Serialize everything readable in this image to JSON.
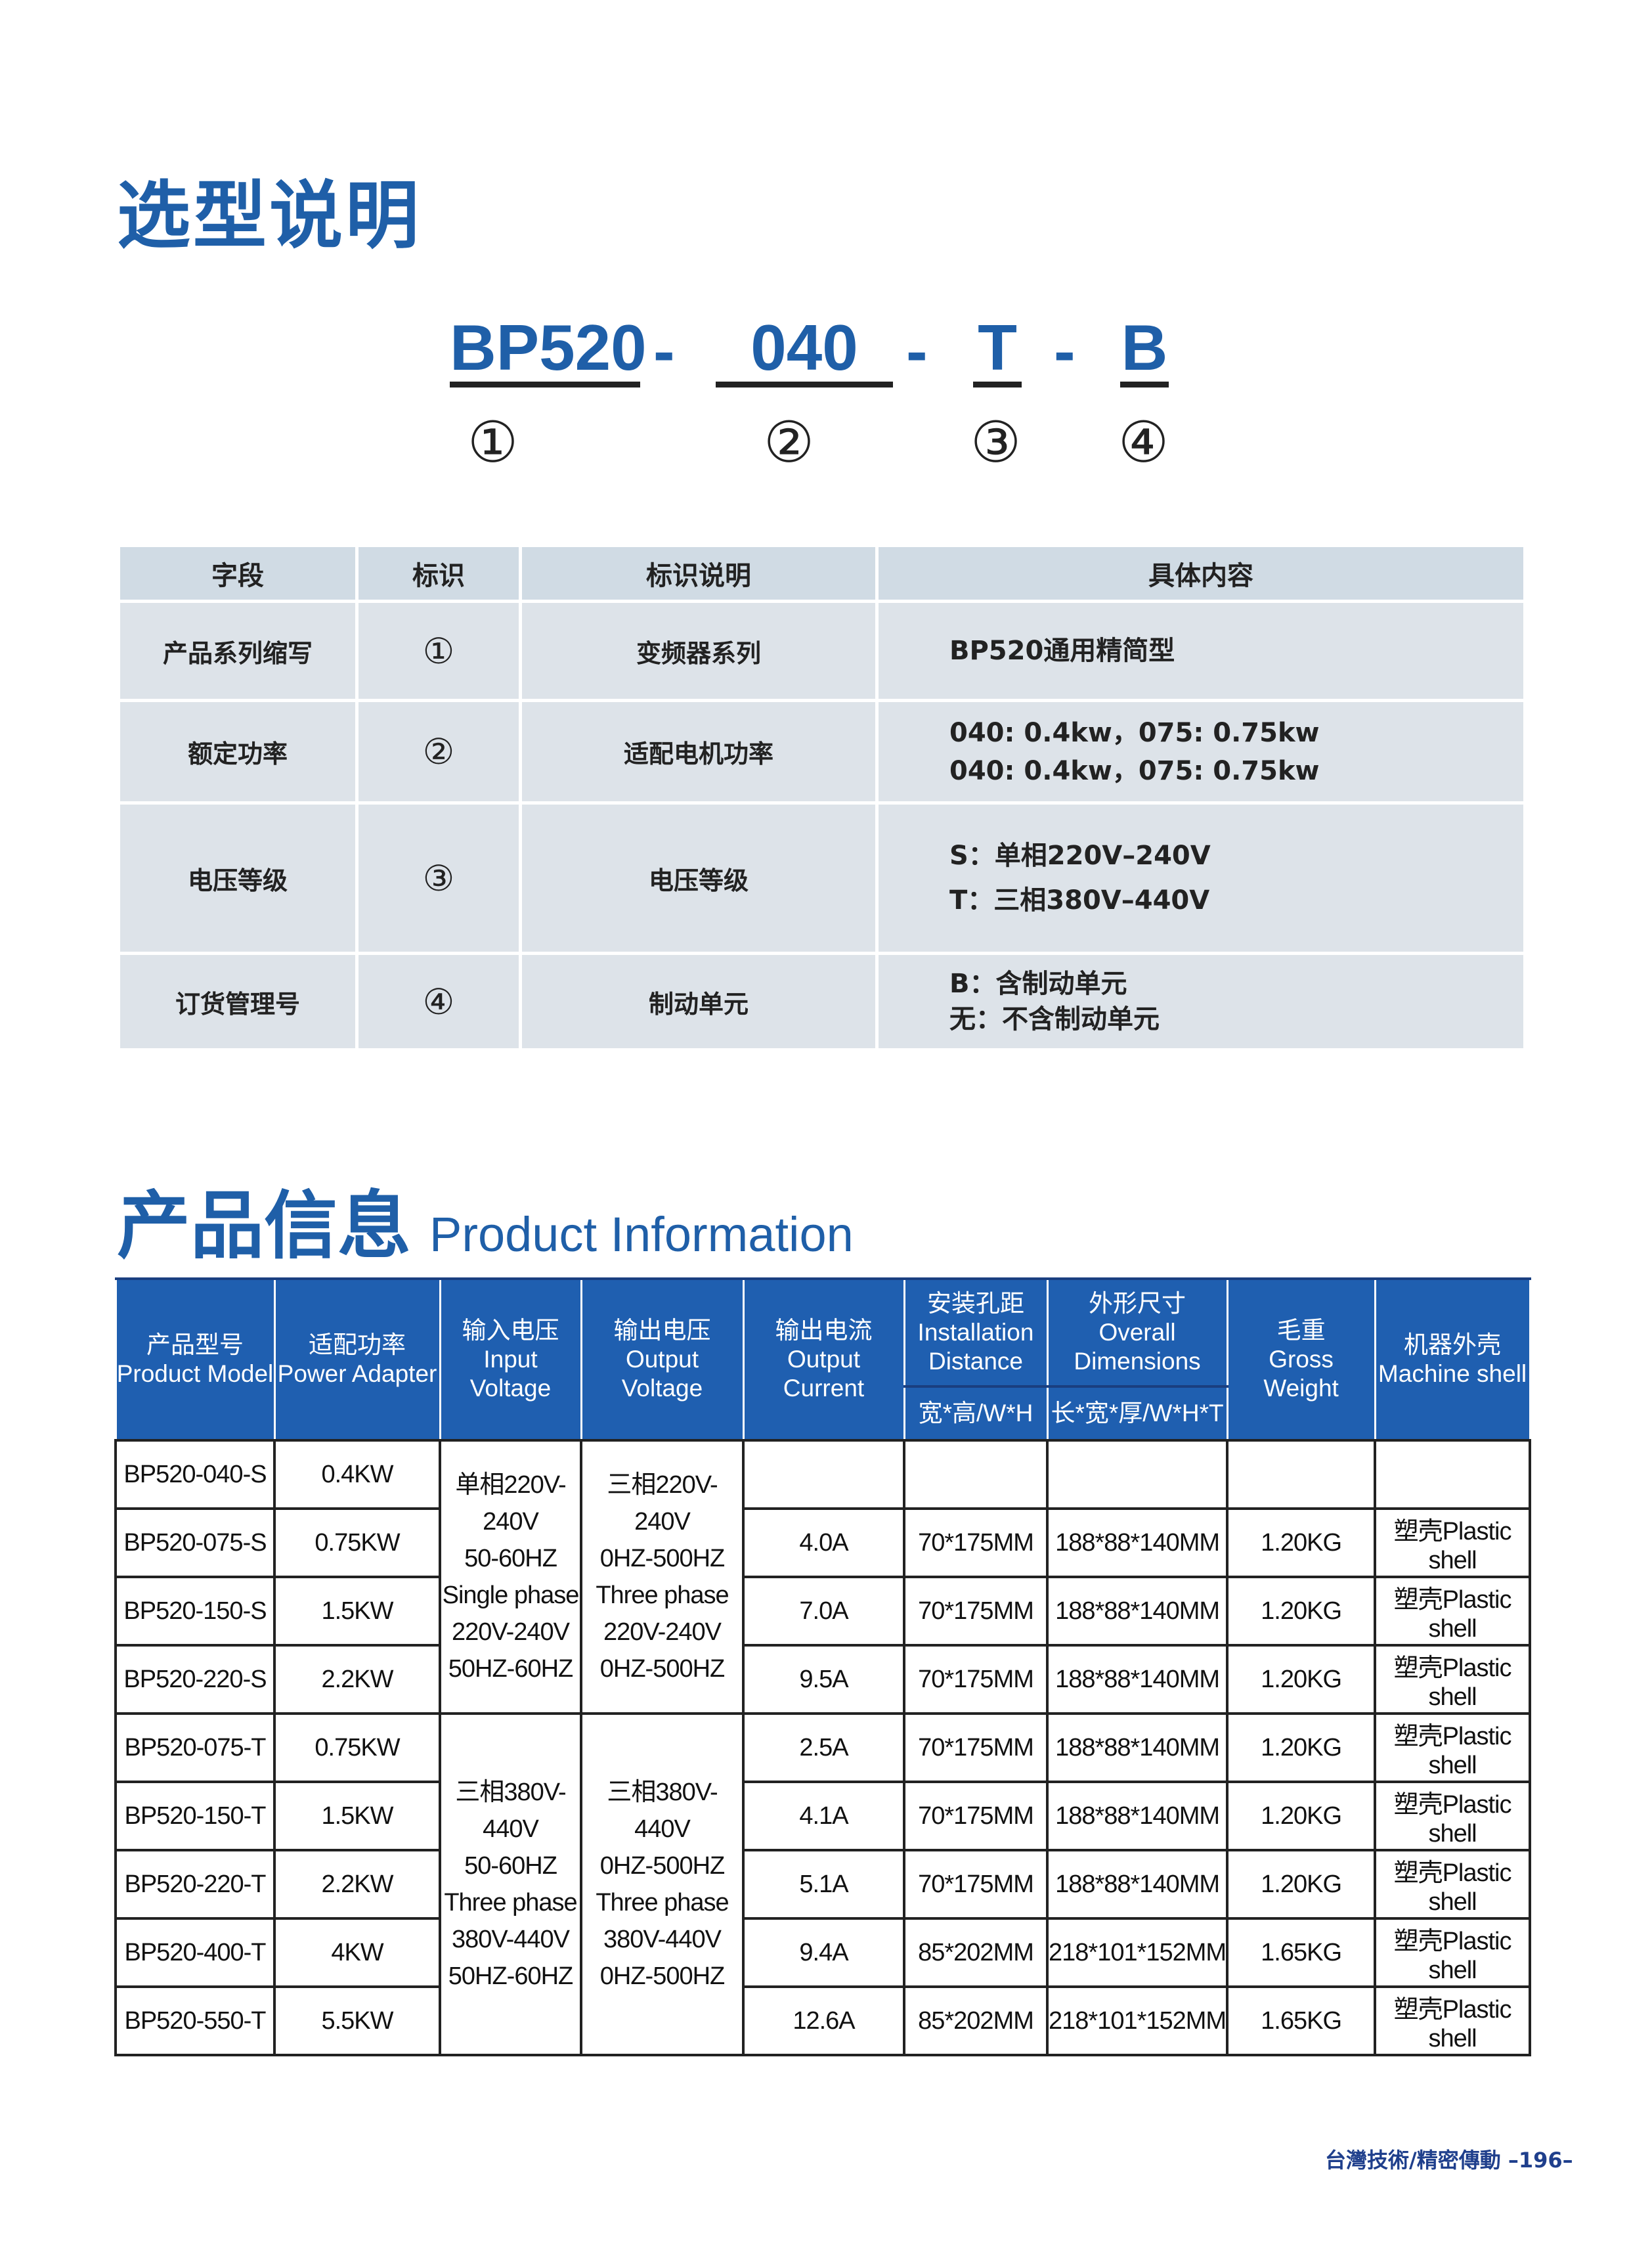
{
  "selection": {
    "title": "选型说明",
    "code_parts": [
      "BP520",
      "040",
      "T",
      "B"
    ],
    "separators": [
      "-",
      "-",
      "-"
    ],
    "markers": [
      "①",
      "②",
      "③",
      "④"
    ],
    "table": {
      "headers": [
        "字段",
        "标识",
        "标识说明",
        "具体内容"
      ],
      "rows": [
        {
          "field": "产品系列缩写",
          "marker": "①",
          "desc": "变频器系列",
          "content": [
            "BP520通用精简型"
          ]
        },
        {
          "field": "额定功率",
          "marker": "②",
          "desc": "适配电机功率",
          "content": [
            "040: 0.4kw，075: 0.75kw",
            "040: 0.4kw，075: 0.75kw"
          ]
        },
        {
          "field": "电压等级",
          "marker": "③",
          "desc": "电压等级",
          "content": [
            "S：单相220V–240V",
            "T：三相380V–440V"
          ]
        },
        {
          "field": "订货管理号",
          "marker": "④",
          "desc": "制动单元",
          "content": [
            "B：含制动单元",
            "无：不含制动单元"
          ]
        }
      ]
    }
  },
  "product": {
    "title_cn": "产品信息",
    "title_en": "Product Information",
    "headers": [
      {
        "cn": "产品型号",
        "en": "Product Model"
      },
      {
        "cn": "适配功率",
        "en": "Power Adapter"
      },
      {
        "cn": "输入电压",
        "en": "Input Voltage"
      },
      {
        "cn": "输出电压",
        "en": "Output Voltage"
      },
      {
        "cn": "输出电流",
        "en": "Output Current"
      },
      {
        "cn": "安装孔距",
        "en": "Installation Distance",
        "sub": "宽*高/W*H"
      },
      {
        "cn": "外形尺寸",
        "en": "Overall Dimensions",
        "sub": "长*宽*厚/W*H*T"
      },
      {
        "cn": "毛重",
        "en": "Gross Weight"
      },
      {
        "cn": "机器外壳",
        "en": "Machine shell"
      }
    ],
    "voltage_groups": [
      {
        "input": [
          "单相220V-",
          "240V",
          "50-60HZ",
          "Single phase",
          "220V-240V",
          "50HZ-60HZ"
        ],
        "output": [
          "三相220V-",
          "240V",
          "0HZ-500HZ",
          "Three phase",
          "220V-240V",
          "0HZ-500HZ"
        ]
      },
      {
        "input": [
          "三相380V-",
          "440V",
          "50-60HZ",
          "Three phase",
          "380V-440V",
          "50HZ-60HZ"
        ],
        "output": [
          "三相380V-",
          "440V",
          "0HZ-500HZ",
          "Three phase",
          "380V-440V",
          "0HZ-500HZ"
        ]
      }
    ],
    "rows": [
      {
        "model": "BP520-040-S",
        "power": "0.4KW",
        "current": "",
        "install": "",
        "dims": "",
        "weight": "",
        "shell": ""
      },
      {
        "model": "BP520-075-S",
        "power": "0.75KW",
        "current": "4.0A",
        "install": "70*175MM",
        "dims": "188*88*140MM",
        "weight": "1.20KG",
        "shell": "塑壳Plastic shell"
      },
      {
        "model": "BP520-150-S",
        "power": "1.5KW",
        "current": "7.0A",
        "install": "70*175MM",
        "dims": "188*88*140MM",
        "weight": "1.20KG",
        "shell": "塑壳Plastic shell"
      },
      {
        "model": "BP520-220-S",
        "power": "2.2KW",
        "current": "9.5A",
        "install": "70*175MM",
        "dims": "188*88*140MM",
        "weight": "1.20KG",
        "shell": "塑壳Plastic shell"
      },
      {
        "model": "BP520-075-T",
        "power": "0.75KW",
        "current": "2.5A",
        "install": "70*175MM",
        "dims": "188*88*140MM",
        "weight": "1.20KG",
        "shell": "塑壳Plastic shell"
      },
      {
        "model": "BP520-150-T",
        "power": "1.5KW",
        "current": "4.1A",
        "install": "70*175MM",
        "dims": "188*88*140MM",
        "weight": "1.20KG",
        "shell": "塑壳Plastic shell"
      },
      {
        "model": "BP520-220-T",
        "power": "2.2KW",
        "current": "5.1A",
        "install": "70*175MM",
        "dims": "188*88*140MM",
        "weight": "1.20KG",
        "shell": "塑壳Plastic shell"
      },
      {
        "model": "BP520-400-T",
        "power": "4KW",
        "current": "9.4A",
        "install": "85*202MM",
        "dims": "218*101*152MM",
        "weight": "1.65KG",
        "shell": "塑壳Plastic shell"
      },
      {
        "model": "BP520-550-T",
        "power": "5.5KW",
        "current": "12.6A",
        "install": "85*202MM",
        "dims": "218*101*152MM",
        "weight": "1.65KG",
        "shell": "塑壳Plastic shell"
      }
    ]
  },
  "footer": {
    "text": "台灣技術/精密傳動",
    "page": "–196–"
  },
  "colors": {
    "brand_blue": "#1f5fa8",
    "header_blue": "#1f5fb0",
    "table_gray": "#dde3e9"
  }
}
